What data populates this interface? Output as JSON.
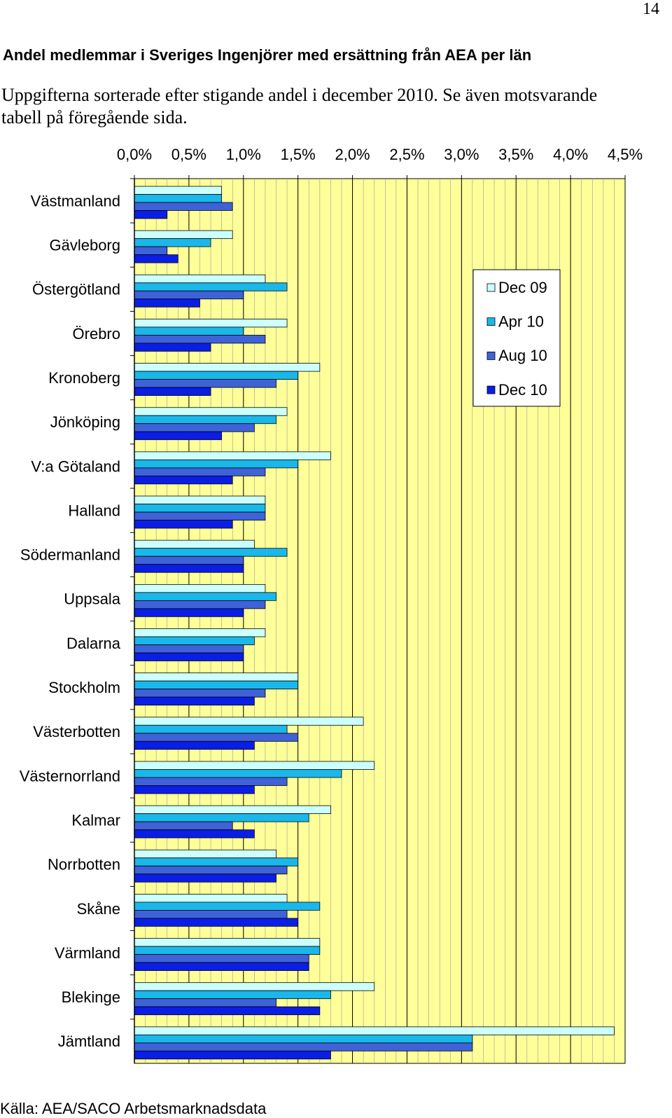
{
  "page_number": "14",
  "chart_data": {
    "type": "hbar",
    "title": "Andel medlemmar i Sveriges Ingenjörer med ersättning från AEA per län",
    "subtitle": "Uppgifterna sorterade efter stigande andel i december 2010. Se även motsvarande tabell på föregående sida.",
    "source": "Källa: AEA/SACO Arbetsmarknadsdata",
    "categories": [
      "Västmanland",
      "Gävleborg",
      "Östergötland",
      "Örebro",
      "Kronoberg",
      "Jönköping",
      "V:a Götaland",
      "Halland",
      "Södermanland",
      "Uppsala",
      "Dalarna",
      "Stockholm",
      "Västerbotten",
      "Västernorrland",
      "Kalmar",
      "Norrbotten",
      "Skåne",
      "Värmland",
      "Blekinge",
      "Jämtland"
    ],
    "series": [
      {
        "name": "Dec 09",
        "color": "#ccffff",
        "values": [
          0.8,
          0.9,
          1.2,
          1.4,
          1.7,
          1.4,
          1.8,
          1.2,
          1.1,
          1.2,
          1.2,
          1.5,
          2.1,
          2.2,
          1.8,
          1.3,
          1.4,
          1.7,
          2.2,
          4.4
        ]
      },
      {
        "name": "Apr 10",
        "color": "#1ab8ea",
        "values": [
          0.8,
          0.7,
          1.4,
          1.0,
          1.5,
          1.3,
          1.5,
          1.2,
          1.4,
          1.3,
          1.1,
          1.5,
          1.4,
          1.9,
          1.6,
          1.5,
          1.7,
          1.7,
          1.8,
          3.1
        ]
      },
      {
        "name": "Aug 10",
        "color": "#3f62d8",
        "values": [
          0.9,
          0.3,
          1.0,
          1.2,
          1.3,
          1.1,
          1.2,
          1.2,
          1.0,
          1.2,
          1.0,
          1.2,
          1.5,
          1.4,
          0.9,
          1.4,
          1.4,
          1.6,
          1.3,
          3.1
        ]
      },
      {
        "name": "Dec 10",
        "color": "#0a1ee6",
        "values": [
          0.3,
          0.4,
          0.6,
          0.7,
          0.7,
          0.8,
          0.9,
          0.9,
          1.0,
          1.0,
          1.0,
          1.1,
          1.1,
          1.1,
          1.1,
          1.3,
          1.5,
          1.6,
          1.7,
          1.8
        ]
      }
    ],
    "xlim": [
      0,
      4.5
    ],
    "xticks": [
      {
        "value": 0,
        "label": "0,0%"
      },
      {
        "value": 0.5,
        "label": "0,5%"
      },
      {
        "value": 1,
        "label": "1,0%"
      },
      {
        "value": 1.5,
        "label": "1,5%"
      },
      {
        "value": 2,
        "label": "2,0%"
      },
      {
        "value": 2.5,
        "label": "2,5%"
      },
      {
        "value": 3,
        "label": "3,0%"
      },
      {
        "value": 3.5,
        "label": "3,5%"
      },
      {
        "value": 4,
        "label": "4,0%"
      },
      {
        "value": 4.5,
        "label": "4,5%"
      }
    ],
    "grid": true,
    "plot_background": "#ffff99",
    "legend": "upper-right"
  }
}
